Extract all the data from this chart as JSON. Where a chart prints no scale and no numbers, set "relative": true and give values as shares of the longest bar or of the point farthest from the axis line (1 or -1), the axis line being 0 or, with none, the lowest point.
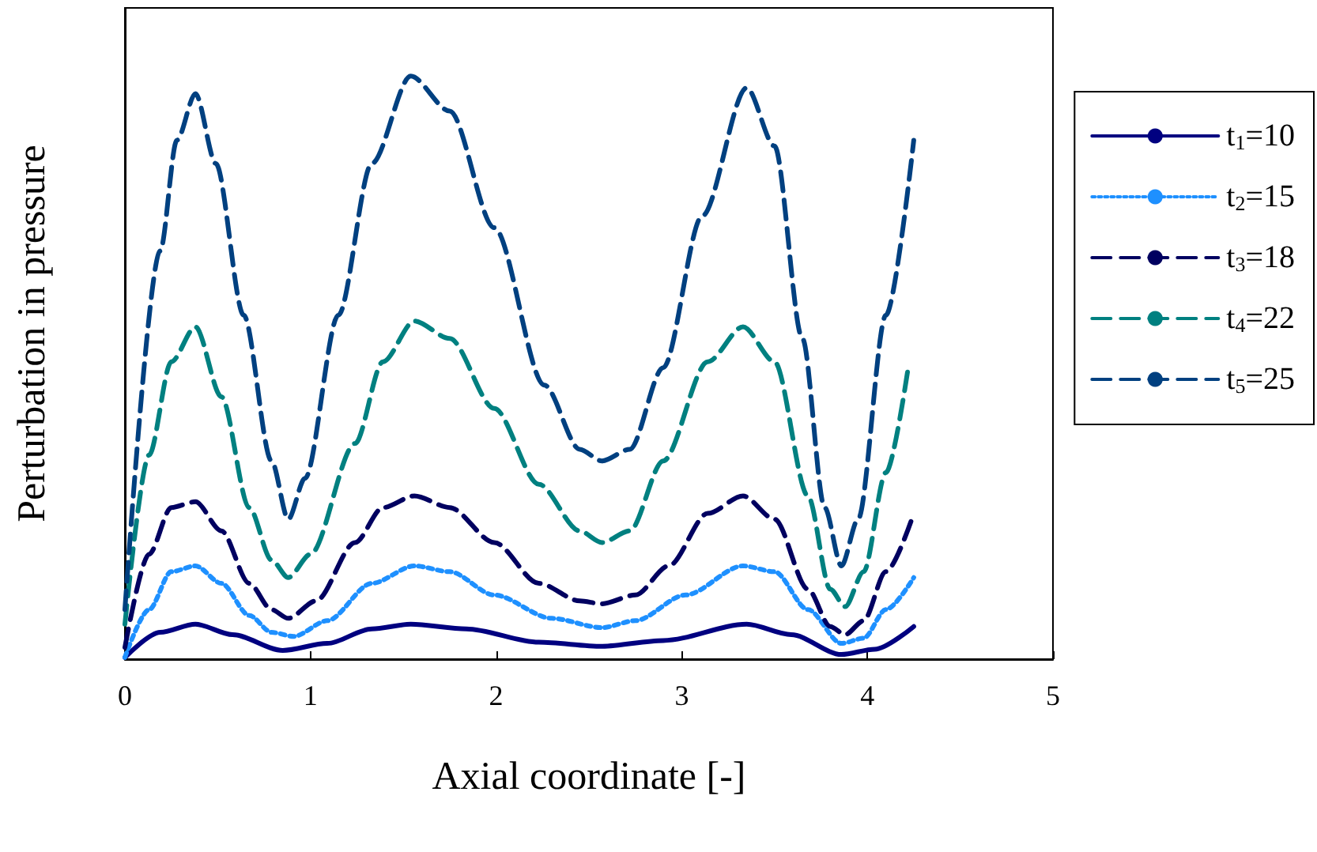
{
  "chart_data": {
    "type": "line",
    "relative": true,
    "xlabel": "Axial coordinate [-]",
    "ylabel": "Perturbation in pressure",
    "xlim": [
      0,
      5
    ],
    "xticks": [
      0,
      1,
      2,
      3,
      4,
      5
    ],
    "legend": "right",
    "grid": false,
    "marker": "none",
    "series": [
      {
        "name": "t$_{1}$=10",
        "color": "#000080",
        "line_style": "solid",
        "x": [
          0,
          0.19,
          0.38,
          0.58,
          0.85,
          1.09,
          1.33,
          1.54,
          1.84,
          2.23,
          2.57,
          2.9,
          3.35,
          3.59,
          3.86,
          4.04,
          4.25
        ],
        "values": [
          0.003,
          0.046,
          0.06,
          0.042,
          0.015,
          0.027,
          0.052,
          0.06,
          0.052,
          0.029,
          0.022,
          0.032,
          0.06,
          0.042,
          0.008,
          0.017,
          0.056
        ]
      },
      {
        "name": "t$_{2}$=15",
        "color": "#1e90ff",
        "line_style": "dotted",
        "x": [
          0,
          0.13,
          0.25,
          0.38,
          0.52,
          0.67,
          0.79,
          0.91,
          1.09,
          1.33,
          1.56,
          1.75,
          1.99,
          2.3,
          2.57,
          2.75,
          3.02,
          3.33,
          3.5,
          3.68,
          3.86,
          3.98,
          4.1,
          4.25
        ],
        "values": [
          0.003,
          0.085,
          0.15,
          0.16,
          0.13,
          0.075,
          0.046,
          0.039,
          0.066,
          0.13,
          0.16,
          0.15,
          0.11,
          0.07,
          0.054,
          0.066,
          0.11,
          0.16,
          0.15,
          0.085,
          0.027,
          0.036,
          0.085,
          0.14
        ]
      },
      {
        "name": "t$_{3}$=18",
        "color": "#000060",
        "line_style": "dashed",
        "x": [
          0,
          0.13,
          0.25,
          0.38,
          0.52,
          0.67,
          0.79,
          0.88,
          1.03,
          1.24,
          1.39,
          1.56,
          1.75,
          1.99,
          2.23,
          2.45,
          2.57,
          2.75,
          2.93,
          3.14,
          3.33,
          3.5,
          3.68,
          3.8,
          3.88,
          3.98,
          4.1,
          4.25
        ],
        "values": [
          0.02,
          0.18,
          0.26,
          0.27,
          0.22,
          0.13,
          0.085,
          0.07,
          0.1,
          0.2,
          0.26,
          0.28,
          0.26,
          0.2,
          0.13,
          0.1,
          0.095,
          0.11,
          0.16,
          0.25,
          0.28,
          0.24,
          0.12,
          0.056,
          0.042,
          0.066,
          0.15,
          0.25
        ]
      },
      {
        "name": "t$_{4}$=22",
        "color": "#008080",
        "line_style": "dashed",
        "x": [
          0,
          0.13,
          0.25,
          0.38,
          0.52,
          0.67,
          0.79,
          0.88,
          1.0,
          1.24,
          1.39,
          1.56,
          1.75,
          1.99,
          2.23,
          2.45,
          2.57,
          2.72,
          2.9,
          3.14,
          3.33,
          3.5,
          3.68,
          3.8,
          3.88,
          3.98,
          4.1,
          4.22
        ],
        "values": [
          0.06,
          0.35,
          0.51,
          0.57,
          0.45,
          0.26,
          0.17,
          0.14,
          0.18,
          0.37,
          0.51,
          0.58,
          0.55,
          0.43,
          0.3,
          0.22,
          0.2,
          0.22,
          0.34,
          0.51,
          0.57,
          0.51,
          0.28,
          0.12,
          0.09,
          0.15,
          0.32,
          0.5
        ]
      },
      {
        "name": "t$_{5}$=25",
        "color": "#004080",
        "line_style": "dashed",
        "x": [
          0,
          0.19,
          0.28,
          0.38,
          0.49,
          0.64,
          0.79,
          0.88,
          0.97,
          1.15,
          1.33,
          1.54,
          1.75,
          1.99,
          2.26,
          2.45,
          2.57,
          2.72,
          2.9,
          3.11,
          3.35,
          3.5,
          3.65,
          3.77,
          3.86,
          3.95,
          4.1,
          4.25
        ],
        "values": [
          0.085,
          0.7,
          0.89,
          0.97,
          0.85,
          0.59,
          0.34,
          0.24,
          0.31,
          0.59,
          0.85,
          1,
          0.94,
          0.74,
          0.47,
          0.36,
          0.34,
          0.36,
          0.5,
          0.76,
          0.98,
          0.88,
          0.55,
          0.26,
          0.16,
          0.24,
          0.59,
          0.89
        ]
      }
    ]
  }
}
